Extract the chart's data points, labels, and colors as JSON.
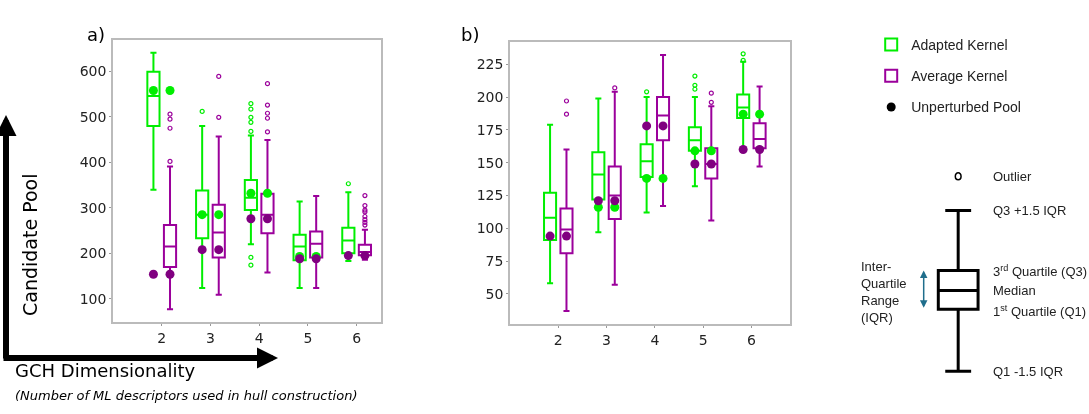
{
  "chart_data": [
    {
      "type": "box",
      "title": "a)",
      "ylabel": "Candidate Pool",
      "xlabel": "GCH Dimensionality",
      "annotations": [
        "(Number of ML descriptors used in hull construction)"
      ],
      "categories": [
        "2",
        "3",
        "4",
        "5",
        "6"
      ],
      "ylim": [
        49,
        669
      ],
      "yticks": [
        100,
        200,
        300,
        400,
        500,
        600
      ],
      "series": [
        {
          "type": "box",
          "color": "#00ee00",
          "boxes": [
            {
              "low": 340,
              "q1": 480,
              "median": 546,
              "q3": 599,
              "high": 641
            },
            {
              "low": 124,
              "q1": 233,
              "median": 285,
              "q3": 338,
              "high": 480,
              "outliers": [
                512
              ]
            },
            {
              "low": 220,
              "q1": 295,
              "median": 322,
              "q3": 361,
              "high": 459,
              "outliers": [
                529,
                517,
                499,
                488,
                468,
                191,
                174
              ]
            },
            {
              "low": 124,
              "q1": 185,
              "median": 215,
              "q3": 241,
              "high": 314
            },
            {
              "low": 183,
              "q1": 200,
              "median": 228,
              "q3": 256,
              "high": 334,
              "outliers": [
                353
              ]
            }
          ]
        },
        {
          "type": "box",
          "color": "#9b009b",
          "boxes": [
            {
              "low": 77,
              "q1": 170,
              "median": 215,
              "q3": 262,
              "high": 391,
              "outliers": [
                402,
                475,
                495,
                506
              ]
            },
            {
              "low": 109,
              "q1": 191,
              "median": 246,
              "q3": 307,
              "high": 457,
              "outliers": [
                499,
                589
              ]
            },
            {
              "low": 158,
              "q1": 244,
              "median": 285,
              "q3": 331,
              "high": 449,
              "outliers": [
                573,
                526,
                508,
                497,
                467
              ]
            },
            {
              "low": 124,
              "q1": 191,
              "median": 221,
              "q3": 248,
              "high": 326
            },
            {
              "low": 186,
              "q1": 196,
              "median": 203,
              "q3": 219,
              "high": 252,
              "outliers": [
                327,
                305,
                295,
                291,
                281,
                274,
                268,
                262
              ]
            }
          ]
        },
        {
          "type": "scatter",
          "color": "#00ee00",
          "x": [
            "2",
            "2",
            "3",
            "3",
            "4",
            "4",
            "5",
            "5"
          ],
          "values": [
            558,
            558,
            285,
            285,
            332,
            332,
            193,
            193
          ]
        },
        {
          "type": "scatter",
          "color": "#800080",
          "x": [
            "2",
            "2",
            "3",
            "3",
            "4",
            "4",
            "5",
            "5",
            "6",
            "6"
          ],
          "values": [
            154,
            154,
            208,
            208,
            276,
            276,
            188,
            188,
            195,
            195
          ]
        }
      ]
    },
    {
      "type": "box",
      "title": "b)",
      "categories": [
        "2",
        "3",
        "4",
        "5",
        "6"
      ],
      "ylim": [
        27,
        242
      ],
      "yticks": [
        50,
        75,
        100,
        125,
        150,
        175,
        200,
        225
      ],
      "legend": "top right",
      "series": [
        {
          "type": "box",
          "name": "Adapted Kernel",
          "color": "#00ee00",
          "boxes": [
            {
              "low": 58,
              "q1": 91,
              "median": 108,
              "q3": 127,
              "high": 179
            },
            {
              "low": 97,
              "q1": 122,
              "median": 141,
              "q3": 158,
              "high": 199
            },
            {
              "low": 112,
              "q1": 139,
              "median": 151,
              "q3": 164,
              "high": 200,
              "outliers": [
                204
              ]
            },
            {
              "low": 132,
              "q1": 159,
              "median": 167,
              "q3": 177,
              "high": 200,
              "outliers": [
                216,
                209,
                206
              ]
            },
            {
              "low": 162,
              "q1": 184,
              "median": 192,
              "q3": 202,
              "high": 227,
              "outliers": [
                233,
                228
              ]
            }
          ]
        },
        {
          "type": "box",
          "name": "Average Kernel",
          "color": "#9b009b",
          "boxes": [
            {
              "low": 37,
              "q1": 81,
              "median": 99,
              "q3": 115,
              "high": 160,
              "outliers": [
                197,
                187
              ]
            },
            {
              "low": 57,
              "q1": 107,
              "median": 125,
              "q3": 147,
              "high": 204,
              "outliers": [
                207
              ]
            },
            {
              "low": 117,
              "q1": 167,
              "median": 186,
              "q3": 200,
              "high": 232
            },
            {
              "low": 106,
              "q1": 138,
              "median": 149,
              "q3": 161,
              "high": 193,
              "outliers": [
                203,
                196
              ]
            },
            {
              "low": 147,
              "q1": 161,
              "median": 168,
              "q3": 180,
              "high": 208
            }
          ]
        },
        {
          "type": "scatter",
          "color": "#00ee00",
          "x": [
            "3",
            "3",
            "4",
            "4",
            "5",
            "5",
            "6",
            "6"
          ],
          "values": [
            116,
            116,
            138,
            138,
            159,
            159,
            187,
            187
          ]
        },
        {
          "type": "scatter",
          "color": "#800080",
          "x": [
            "2",
            "2",
            "3",
            "3",
            "4",
            "4",
            "5",
            "5",
            "6",
            "6"
          ],
          "values": [
            94,
            94,
            121,
            121,
            178,
            178,
            149,
            149,
            160,
            160
          ]
        },
        {
          "type": "scatter",
          "name": "Unperturbed Pool",
          "color": "#000000",
          "x": [
            "2"
          ],
          "values": [
            null
          ]
        }
      ]
    },
    {
      "type": "other",
      "annotations": [
        "Outlier",
        "Q3 +1.5 IQR",
        "3$^{rd}$ Quartile (Q3)",
        "Median",
        "1$^{st}$ Quartile (Q1)",
        "Q1 -1.5 IQR",
        "Inter-\nQuartile\nRange\n(IQR)"
      ]
    }
  ]
}
